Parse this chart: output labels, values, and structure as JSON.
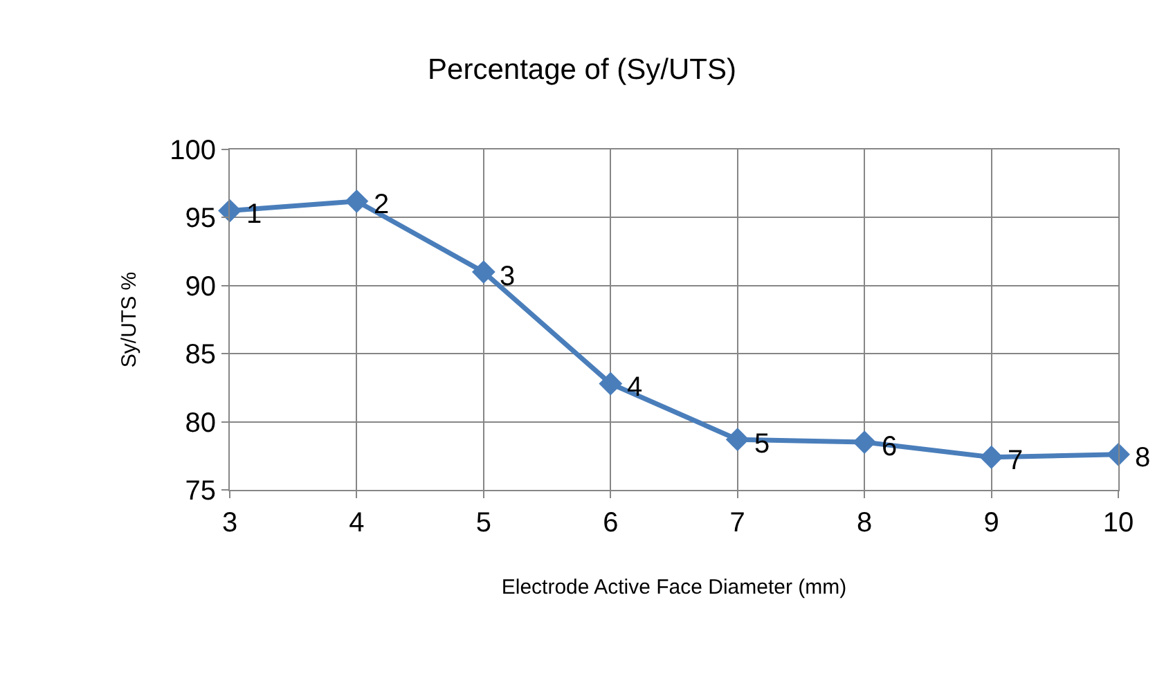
{
  "chart_data": {
    "type": "line",
    "title": "Percentage of (Sy/UTS)",
    "xlabel": "Electrode Active Face Diameter (mm)",
    "ylabel": "Sy/UTS %",
    "x": [
      3,
      4,
      5,
      6,
      7,
      8,
      9,
      10
    ],
    "series": [
      {
        "color": "#4a7ebb",
        "values": [
          95.5,
          96.2,
          91.0,
          82.8,
          78.7,
          78.5,
          77.4,
          77.6
        ]
      }
    ],
    "xlim": [
      3,
      10
    ],
    "xticks": [
      3,
      4,
      5,
      6,
      7,
      8,
      9,
      10
    ],
    "ylim": [
      75,
      100
    ],
    "yticks": [
      75,
      80,
      85,
      90,
      95,
      100
    ],
    "grid": true,
    "legend": false,
    "marker": "diamond",
    "line_style": "solid",
    "annotations": [
      {
        "text": "1",
        "x": 3,
        "y": 95.5
      },
      {
        "text": "2",
        "x": 4,
        "y": 96.2
      },
      {
        "text": "3",
        "x": 5,
        "y": 91.0
      },
      {
        "text": "4",
        "x": 6,
        "y": 82.8
      },
      {
        "text": "5",
        "x": 7,
        "y": 78.7
      },
      {
        "text": "6",
        "x": 8,
        "y": 78.5
      },
      {
        "text": "7",
        "x": 9,
        "y": 77.4
      },
      {
        "text": "8",
        "x": 10,
        "y": 77.6
      }
    ]
  }
}
